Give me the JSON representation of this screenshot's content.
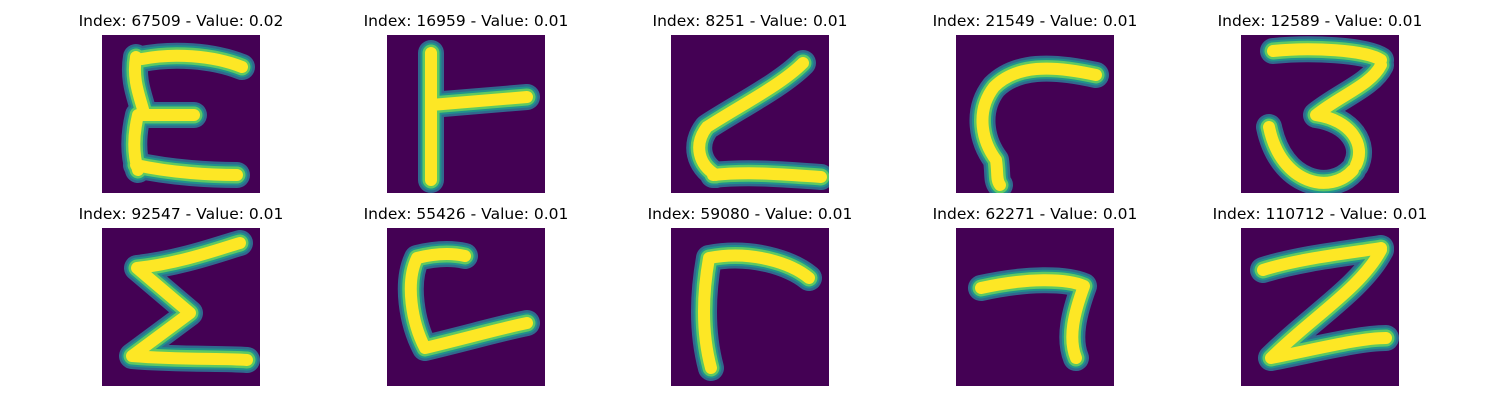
{
  "figure": {
    "panels": [
      {
        "title": "Index: 67509 - Value: 0.02",
        "depicts": "letter-E-stroke"
      },
      {
        "title": "Index: 16959 - Value: 0.01",
        "depicts": "T-like-stroke"
      },
      {
        "title": "Index: 8251 - Value: 0.01",
        "depicts": "zigzag-stroke"
      },
      {
        "title": "Index: 21549 - Value: 0.01",
        "depicts": "hook-stroke"
      },
      {
        "title": "Index: 12589 - Value: 0.01",
        "depicts": "digit-3-stroke"
      },
      {
        "title": "Index: 92547 - Value: 0.01",
        "depicts": "sigma-stroke"
      },
      {
        "title": "Index: 55426 - Value: 0.01",
        "depicts": "letter-L-stroke"
      },
      {
        "title": "Index: 59080 - Value: 0.01",
        "depicts": "angle-stroke"
      },
      {
        "title": "Index: 62271 - Value: 0.01",
        "depicts": "digit-7-stroke"
      },
      {
        "title": "Index: 110712 - Value: 0.01",
        "depicts": "digit-2-stroke"
      }
    ],
    "colors": {
      "background": "#440154",
      "edge_outer": "#31688e",
      "edge_mid": "#21918c",
      "edge_inner": "#5ec962",
      "stroke": "#fde725"
    }
  }
}
